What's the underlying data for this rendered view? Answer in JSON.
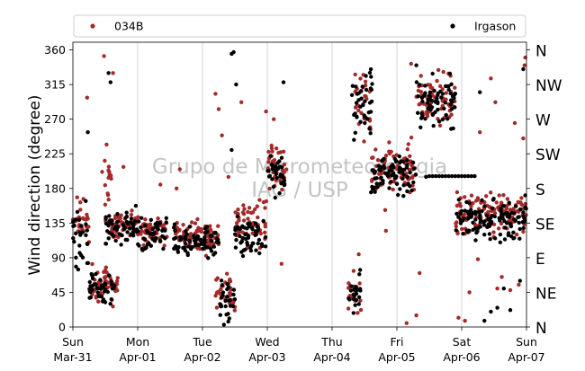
{
  "chart_data": {
    "type": "scatter",
    "ylabel": "Wind direction (degree)",
    "watermark": [
      "Grupo de Micrometeorologia",
      "IAG / USP"
    ],
    "x_range_days": [
      0,
      7
    ],
    "ylim": [
      0,
      370
    ],
    "y_ticks": [
      0,
      45,
      90,
      135,
      180,
      225,
      270,
      315,
      360
    ],
    "x_ticks": [
      {
        "day": 0,
        "weekday": "Sun",
        "date": "Mar-31"
      },
      {
        "day": 1,
        "weekday": "Mon",
        "date": "Apr-01"
      },
      {
        "day": 2,
        "weekday": "Tue",
        "date": "Apr-02"
      },
      {
        "day": 3,
        "weekday": "Wed",
        "date": "Apr-03"
      },
      {
        "day": 4,
        "weekday": "Thu",
        "date": "Apr-04"
      },
      {
        "day": 5,
        "weekday": "Fri",
        "date": "Apr-05"
      },
      {
        "day": 6,
        "weekday": "Sat",
        "date": "Apr-06"
      },
      {
        "day": 7,
        "weekday": "Sun",
        "date": "Apr-07"
      }
    ],
    "compass_ticks": [
      {
        "deg": 0,
        "label": "N"
      },
      {
        "deg": 45,
        "label": "NE"
      },
      {
        "deg": 90,
        "label": "E"
      },
      {
        "deg": 135,
        "label": "SE"
      },
      {
        "deg": 180,
        "label": "S"
      },
      {
        "deg": 225,
        "label": "SW"
      },
      {
        "deg": 270,
        "label": "W"
      },
      {
        "deg": 315,
        "label": "NW"
      },
      {
        "deg": 360,
        "label": "N"
      }
    ],
    "grid": "vertical",
    "legend_placement": "top",
    "series": [
      {
        "name": "034B",
        "color": "#a52a2a",
        "segments": [
          {
            "day": [
              0.0,
              0.25
            ],
            "deg": [
              85,
              185
            ]
          },
          {
            "day": [
              0.25,
              0.7
            ],
            "deg": [
              20,
              90
            ]
          },
          {
            "day": [
              0.45,
              0.6
            ],
            "deg": [
              140,
              230
            ]
          },
          {
            "day": [
              0.5,
              1.0
            ],
            "deg": [
              100,
              160
            ]
          },
          {
            "day": [
              1.0,
              1.45
            ],
            "deg": [
              95,
              150
            ]
          },
          {
            "day": [
              1.55,
              2.25
            ],
            "deg": [
              90,
              145
            ]
          },
          {
            "day": [
              2.2,
              2.5
            ],
            "deg": [
              10,
              80
            ]
          },
          {
            "day": [
              2.5,
              3.0
            ],
            "deg": [
              95,
              175
            ]
          },
          {
            "day": [
              3.0,
              3.3
            ],
            "deg": [
              160,
              260
            ]
          },
          {
            "day": [
              4.25,
              4.45
            ],
            "deg": [
              0,
              100
            ]
          },
          {
            "day": [
              4.35,
              4.6
            ],
            "deg": [
              220,
              350
            ]
          },
          {
            "day": [
              4.6,
              5.3
            ],
            "deg": [
              160,
              250
            ]
          },
          {
            "day": [
              5.3,
              5.9
            ],
            "deg": [
              250,
              345
            ]
          },
          {
            "day": [
              5.9,
              6.45
            ],
            "deg": [
              105,
              190
            ]
          },
          {
            "day": [
              6.45,
              7.0
            ],
            "deg": [
              100,
              190
            ]
          }
        ],
        "points": [
          {
            "day": 0.22,
            "deg": 298
          },
          {
            "day": 0.48,
            "deg": 352
          },
          {
            "day": 0.52,
            "deg": 237
          },
          {
            "day": 0.62,
            "deg": 330
          },
          {
            "day": 0.78,
            "deg": 208
          },
          {
            "day": 1.35,
            "deg": 185
          },
          {
            "day": 1.6,
            "deg": 180
          },
          {
            "day": 1.65,
            "deg": 205
          },
          {
            "day": 2.2,
            "deg": 303
          },
          {
            "day": 2.25,
            "deg": 283
          },
          {
            "day": 2.3,
            "deg": 249
          },
          {
            "day": 2.4,
            "deg": 195
          },
          {
            "day": 2.6,
            "deg": 292
          },
          {
            "day": 2.88,
            "deg": 165
          },
          {
            "day": 2.98,
            "deg": 280
          },
          {
            "day": 3.1,
            "deg": 270
          },
          {
            "day": 3.22,
            "deg": 82
          },
          {
            "day": 4.82,
            "deg": 152
          },
          {
            "day": 4.83,
            "deg": 125
          },
          {
            "day": 4.88,
            "deg": 240
          },
          {
            "day": 5.15,
            "deg": 5
          },
          {
            "day": 5.2,
            "deg": 175
          },
          {
            "day": 5.22,
            "deg": 342
          },
          {
            "day": 5.3,
            "deg": 15
          },
          {
            "day": 5.35,
            "deg": 70
          },
          {
            "day": 5.4,
            "deg": 300
          },
          {
            "day": 5.5,
            "deg": 280
          },
          {
            "day": 5.95,
            "deg": 12
          },
          {
            "day": 6.05,
            "deg": 8
          },
          {
            "day": 6.12,
            "deg": 45
          },
          {
            "day": 6.25,
            "deg": 88
          },
          {
            "day": 6.28,
            "deg": 253
          },
          {
            "day": 6.45,
            "deg": 323
          },
          {
            "day": 6.52,
            "deg": 292
          },
          {
            "day": 6.55,
            "deg": 50
          },
          {
            "day": 6.62,
            "deg": 65
          },
          {
            "day": 6.75,
            "deg": 48
          },
          {
            "day": 6.82,
            "deg": 265
          },
          {
            "day": 6.88,
            "deg": 55
          },
          {
            "day": 6.95,
            "deg": 245
          },
          {
            "day": 6.98,
            "deg": 350
          },
          {
            "day": 6.97,
            "deg": 340
          }
        ]
      },
      {
        "name": "Irgason",
        "color": "#000000",
        "segments": [
          {
            "day": [
              0.0,
              0.25
            ],
            "deg": [
              70,
              190
            ]
          },
          {
            "day": [
              0.25,
              0.65
            ],
            "deg": [
              15,
              85
            ]
          },
          {
            "day": [
              0.5,
              1.0
            ],
            "deg": [
              95,
              165
            ]
          },
          {
            "day": [
              1.0,
              1.45
            ],
            "deg": [
              85,
              150
            ]
          },
          {
            "day": [
              1.55,
              2.25
            ],
            "deg": [
              80,
              140
            ]
          },
          {
            "day": [
              2.25,
              2.5
            ],
            "deg": [
              0,
              70
            ]
          },
          {
            "day": [
              2.5,
              3.0
            ],
            "deg": [
              80,
              160
            ]
          },
          {
            "day": [
              3.0,
              3.3
            ],
            "deg": [
              160,
              240
            ]
          },
          {
            "day": [
              4.25,
              4.45
            ],
            "deg": [
              0,
              85
            ]
          },
          {
            "day": [
              4.3,
              4.65
            ],
            "deg": [
              230,
              355
            ]
          },
          {
            "day": [
              4.6,
              5.3
            ],
            "deg": [
              150,
              240
            ]
          },
          {
            "day": [
              5.3,
              5.9
            ],
            "deg": [
              250,
              340
            ]
          },
          {
            "day": [
              5.9,
              6.45
            ],
            "deg": [
              100,
              180
            ]
          },
          {
            "day": [
              6.45,
              7.0
            ],
            "deg": [
              95,
              185
            ]
          }
        ],
        "points": [
          {
            "day": 0.23,
            "deg": 253
          },
          {
            "day": 0.55,
            "deg": 330
          },
          {
            "day": 0.58,
            "deg": 318
          },
          {
            "day": 2.45,
            "deg": 355
          },
          {
            "day": 2.48,
            "deg": 357
          },
          {
            "day": 2.52,
            "deg": 315
          },
          {
            "day": 2.45,
            "deg": 230
          },
          {
            "day": 3.25,
            "deg": 318
          },
          {
            "day": 4.6,
            "deg": 175
          },
          {
            "day": 5.2,
            "deg": 183
          },
          {
            "day": 5.3,
            "deg": 340
          },
          {
            "day": 5.45,
            "deg": 195
          },
          {
            "day": 5.5,
            "deg": 196
          },
          {
            "day": 5.55,
            "deg": 196
          },
          {
            "day": 5.6,
            "deg": 196
          },
          {
            "day": 5.65,
            "deg": 196
          },
          {
            "day": 5.7,
            "deg": 196
          },
          {
            "day": 5.75,
            "deg": 196
          },
          {
            "day": 5.8,
            "deg": 196
          },
          {
            "day": 5.85,
            "deg": 196
          },
          {
            "day": 5.9,
            "deg": 196
          },
          {
            "day": 5.95,
            "deg": 196
          },
          {
            "day": 6.0,
            "deg": 196
          },
          {
            "day": 6.05,
            "deg": 196
          },
          {
            "day": 6.1,
            "deg": 196
          },
          {
            "day": 6.15,
            "deg": 196
          },
          {
            "day": 6.2,
            "deg": 196
          },
          {
            "day": 6.28,
            "deg": 305
          },
          {
            "day": 6.35,
            "deg": 8
          },
          {
            "day": 6.45,
            "deg": 20
          },
          {
            "day": 6.55,
            "deg": 25
          },
          {
            "day": 6.65,
            "deg": 50
          },
          {
            "day": 6.9,
            "deg": 60
          },
          {
            "day": 6.75,
            "deg": 22
          },
          {
            "day": 6.95,
            "deg": 335
          }
        ]
      }
    ]
  }
}
